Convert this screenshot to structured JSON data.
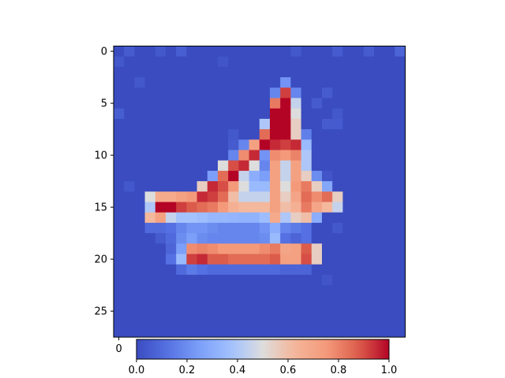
{
  "chart_data": {
    "type": "heatmap",
    "colormap": "coolwarm",
    "rows": 28,
    "cols": 28,
    "clim": [
      0,
      1
    ],
    "y_ticks": [
      0,
      5,
      10,
      15,
      20,
      25
    ],
    "y_tick_labels": [
      "0",
      "5",
      "10",
      "15",
      "20",
      "25"
    ],
    "x_ticks": [
      0
    ],
    "x_tick_labels": [
      "0"
    ],
    "colorbar": {
      "orientation": "horizontal",
      "ticks": [
        0.0,
        0.2,
        0.4,
        0.6,
        0.8,
        1.0
      ],
      "tick_labels": [
        "0.0",
        "0.2",
        "0.4",
        "0.6",
        "0.8",
        "1.0"
      ]
    },
    "background": 0.0,
    "background_noise": [
      {
        "r": 0,
        "c": 1,
        "v": 0.05
      },
      {
        "r": 0,
        "c": 4,
        "v": 0.04
      },
      {
        "r": 0,
        "c": 6,
        "v": 0.06
      },
      {
        "r": 0,
        "c": 17,
        "v": 0.04
      },
      {
        "r": 0,
        "c": 21,
        "v": 0.05
      },
      {
        "r": 0,
        "c": 24,
        "v": 0.05
      },
      {
        "r": 0,
        "c": 27,
        "v": 0.08
      },
      {
        "r": 1,
        "c": 0,
        "v": 0.04
      },
      {
        "r": 1,
        "c": 10,
        "v": 0.03
      },
      {
        "r": 3,
        "c": 2,
        "v": 0.04
      },
      {
        "r": 4,
        "c": 20,
        "v": 0.05
      },
      {
        "r": 5,
        "c": 19,
        "v": 0.05
      },
      {
        "r": 6,
        "c": 0,
        "v": 0.06
      },
      {
        "r": 6,
        "c": 21,
        "v": 0.04
      },
      {
        "r": 7,
        "c": 20,
        "v": 0.05
      },
      {
        "r": 7,
        "c": 21,
        "v": 0.05
      },
      {
        "r": 8,
        "c": 11,
        "v": 0.04
      },
      {
        "r": 9,
        "c": 11,
        "v": 0.05
      },
      {
        "r": 10,
        "c": 11,
        "v": 0.04
      },
      {
        "r": 11,
        "c": 13,
        "v": 0.05
      },
      {
        "r": 12,
        "c": 20,
        "v": 0.03
      },
      {
        "r": 13,
        "c": 1,
        "v": 0.04
      },
      {
        "r": 17,
        "c": 21,
        "v": 0.04
      },
      {
        "r": 22,
        "c": 20,
        "v": 0.03
      }
    ],
    "cells": [
      {
        "r": 3,
        "c": 16,
        "v": 0.22
      },
      {
        "r": 4,
        "c": 15,
        "v": 0.18
      },
      {
        "r": 4,
        "c": 16,
        "v": 0.92
      },
      {
        "r": 4,
        "c": 17,
        "v": 0.18
      },
      {
        "r": 5,
        "c": 15,
        "v": 0.82
      },
      {
        "r": 5,
        "c": 16,
        "v": 1.0
      },
      {
        "r": 5,
        "c": 17,
        "v": 0.45
      },
      {
        "r": 6,
        "c": 15,
        "v": 1.0
      },
      {
        "r": 6,
        "c": 16,
        "v": 1.0
      },
      {
        "r": 6,
        "c": 17,
        "v": 0.5
      },
      {
        "r": 7,
        "c": 14,
        "v": 0.4
      },
      {
        "r": 7,
        "c": 15,
        "v": 1.0
      },
      {
        "r": 7,
        "c": 16,
        "v": 1.0
      },
      {
        "r": 7,
        "c": 17,
        "v": 0.55
      },
      {
        "r": 8,
        "c": 14,
        "v": 0.85
      },
      {
        "r": 8,
        "c": 15,
        "v": 1.0
      },
      {
        "r": 8,
        "c": 16,
        "v": 1.0
      },
      {
        "r": 8,
        "c": 17,
        "v": 0.55
      },
      {
        "r": 8,
        "c": 18,
        "v": 0.16
      },
      {
        "r": 9,
        "c": 12,
        "v": 0.18
      },
      {
        "r": 9,
        "c": 13,
        "v": 0.72
      },
      {
        "r": 9,
        "c": 14,
        "v": 1.0
      },
      {
        "r": 9,
        "c": 15,
        "v": 0.95
      },
      {
        "r": 9,
        "c": 16,
        "v": 0.92
      },
      {
        "r": 9,
        "c": 17,
        "v": 0.95
      },
      {
        "r": 9,
        "c": 18,
        "v": 0.35
      },
      {
        "r": 10,
        "c": 11,
        "v": 0.18
      },
      {
        "r": 10,
        "c": 12,
        "v": 0.78
      },
      {
        "r": 10,
        "c": 13,
        "v": 0.95
      },
      {
        "r": 10,
        "c": 14,
        "v": 0.22
      },
      {
        "r": 10,
        "c": 15,
        "v": 0.78
      },
      {
        "r": 10,
        "c": 16,
        "v": 0.75
      },
      {
        "r": 10,
        "c": 17,
        "v": 0.8
      },
      {
        "r": 10,
        "c": 18,
        "v": 0.4
      },
      {
        "r": 11,
        "c": 10,
        "v": 0.5
      },
      {
        "r": 11,
        "c": 11,
        "v": 0.9
      },
      {
        "r": 11,
        "c": 12,
        "v": 0.95
      },
      {
        "r": 11,
        "c": 13,
        "v": 0.5
      },
      {
        "r": 11,
        "c": 14,
        "v": 0.18
      },
      {
        "r": 11,
        "c": 15,
        "v": 0.72
      },
      {
        "r": 11,
        "c": 16,
        "v": 0.45
      },
      {
        "r": 11,
        "c": 17,
        "v": 0.72
      },
      {
        "r": 11,
        "c": 18,
        "v": 0.4
      },
      {
        "r": 12,
        "c": 9,
        "v": 0.25
      },
      {
        "r": 12,
        "c": 10,
        "v": 0.85
      },
      {
        "r": 12,
        "c": 11,
        "v": 1.0
      },
      {
        "r": 12,
        "c": 12,
        "v": 0.45
      },
      {
        "r": 12,
        "c": 13,
        "v": 0.3
      },
      {
        "r": 12,
        "c": 14,
        "v": 0.25
      },
      {
        "r": 12,
        "c": 15,
        "v": 0.72
      },
      {
        "r": 12,
        "c": 16,
        "v": 0.45
      },
      {
        "r": 12,
        "c": 17,
        "v": 0.72
      },
      {
        "r": 12,
        "c": 18,
        "v": 0.55
      },
      {
        "r": 12,
        "c": 19,
        "v": 0.2
      },
      {
        "r": 13,
        "c": 8,
        "v": 0.55
      },
      {
        "r": 13,
        "c": 9,
        "v": 0.95
      },
      {
        "r": 13,
        "c": 10,
        "v": 0.9
      },
      {
        "r": 13,
        "c": 11,
        "v": 0.75
      },
      {
        "r": 13,
        "c": 12,
        "v": 0.5
      },
      {
        "r": 13,
        "c": 13,
        "v": 0.35
      },
      {
        "r": 13,
        "c": 14,
        "v": 0.35
      },
      {
        "r": 13,
        "c": 15,
        "v": 0.72
      },
      {
        "r": 13,
        "c": 16,
        "v": 0.5
      },
      {
        "r": 13,
        "c": 17,
        "v": 0.75
      },
      {
        "r": 13,
        "c": 18,
        "v": 0.82
      },
      {
        "r": 13,
        "c": 19,
        "v": 0.55
      },
      {
        "r": 13,
        "c": 20,
        "v": 0.28
      },
      {
        "r": 14,
        "c": 3,
        "v": 0.5
      },
      {
        "r": 14,
        "c": 4,
        "v": 0.68
      },
      {
        "r": 14,
        "c": 5,
        "v": 0.68
      },
      {
        "r": 14,
        "c": 6,
        "v": 0.72
      },
      {
        "r": 14,
        "c": 7,
        "v": 0.75
      },
      {
        "r": 14,
        "c": 8,
        "v": 0.95
      },
      {
        "r": 14,
        "c": 9,
        "v": 0.92
      },
      {
        "r": 14,
        "c": 10,
        "v": 0.85
      },
      {
        "r": 14,
        "c": 11,
        "v": 0.6
      },
      {
        "r": 14,
        "c": 12,
        "v": 0.45
      },
      {
        "r": 14,
        "c": 13,
        "v": 0.45
      },
      {
        "r": 14,
        "c": 14,
        "v": 0.45
      },
      {
        "r": 14,
        "c": 15,
        "v": 0.72
      },
      {
        "r": 14,
        "c": 16,
        "v": 0.55
      },
      {
        "r": 14,
        "c": 17,
        "v": 0.7
      },
      {
        "r": 14,
        "c": 18,
        "v": 0.85
      },
      {
        "r": 14,
        "c": 19,
        "v": 0.78
      },
      {
        "r": 14,
        "c": 20,
        "v": 0.85
      },
      {
        "r": 14,
        "c": 21,
        "v": 0.55
      },
      {
        "r": 15,
        "c": 3,
        "v": 0.4
      },
      {
        "r": 15,
        "c": 4,
        "v": 1.0
      },
      {
        "r": 15,
        "c": 5,
        "v": 1.0
      },
      {
        "r": 15,
        "c": 6,
        "v": 0.92
      },
      {
        "r": 15,
        "c": 7,
        "v": 0.88
      },
      {
        "r": 15,
        "c": 8,
        "v": 0.85
      },
      {
        "r": 15,
        "c": 9,
        "v": 0.82
      },
      {
        "r": 15,
        "c": 10,
        "v": 0.75
      },
      {
        "r": 15,
        "c": 11,
        "v": 0.65
      },
      {
        "r": 15,
        "c": 12,
        "v": 0.62
      },
      {
        "r": 15,
        "c": 13,
        "v": 0.62
      },
      {
        "r": 15,
        "c": 14,
        "v": 0.62
      },
      {
        "r": 15,
        "c": 15,
        "v": 0.72
      },
      {
        "r": 15,
        "c": 16,
        "v": 0.6
      },
      {
        "r": 15,
        "c": 17,
        "v": 0.65
      },
      {
        "r": 15,
        "c": 18,
        "v": 0.82
      },
      {
        "r": 15,
        "c": 19,
        "v": 0.7
      },
      {
        "r": 15,
        "c": 20,
        "v": 0.62
      },
      {
        "r": 15,
        "c": 21,
        "v": 0.45
      },
      {
        "r": 16,
        "c": 3,
        "v": 0.62
      },
      {
        "r": 16,
        "c": 4,
        "v": 0.72
      },
      {
        "r": 16,
        "c": 5,
        "v": 0.45
      },
      {
        "r": 16,
        "c": 6,
        "v": 0.38
      },
      {
        "r": 16,
        "c": 7,
        "v": 0.38
      },
      {
        "r": 16,
        "c": 8,
        "v": 0.36
      },
      {
        "r": 16,
        "c": 9,
        "v": 0.34
      },
      {
        "r": 16,
        "c": 10,
        "v": 0.34
      },
      {
        "r": 16,
        "c": 11,
        "v": 0.33
      },
      {
        "r": 16,
        "c": 12,
        "v": 0.32
      },
      {
        "r": 16,
        "c": 13,
        "v": 0.32
      },
      {
        "r": 16,
        "c": 14,
        "v": 0.36
      },
      {
        "r": 16,
        "c": 15,
        "v": 0.68
      },
      {
        "r": 16,
        "c": 16,
        "v": 0.4
      },
      {
        "r": 16,
        "c": 17,
        "v": 0.55
      },
      {
        "r": 16,
        "c": 18,
        "v": 0.6
      },
      {
        "r": 16,
        "c": 19,
        "v": 0.3
      },
      {
        "r": 17,
        "c": 3,
        "v": 0.1
      },
      {
        "r": 17,
        "c": 4,
        "v": 0.1
      },
      {
        "r": 17,
        "c": 5,
        "v": 0.12
      },
      {
        "r": 17,
        "c": 6,
        "v": 0.18
      },
      {
        "r": 17,
        "c": 7,
        "v": 0.22
      },
      {
        "r": 17,
        "c": 8,
        "v": 0.22
      },
      {
        "r": 17,
        "c": 9,
        "v": 0.2
      },
      {
        "r": 17,
        "c": 10,
        "v": 0.18
      },
      {
        "r": 17,
        "c": 11,
        "v": 0.18
      },
      {
        "r": 17,
        "c": 12,
        "v": 0.18
      },
      {
        "r": 17,
        "c": 13,
        "v": 0.18
      },
      {
        "r": 17,
        "c": 14,
        "v": 0.22
      },
      {
        "r": 17,
        "c": 15,
        "v": 0.3
      },
      {
        "r": 17,
        "c": 16,
        "v": 0.18
      },
      {
        "r": 17,
        "c": 17,
        "v": 0.15
      },
      {
        "r": 17,
        "c": 18,
        "v": 0.12
      },
      {
        "r": 18,
        "c": 4,
        "v": 0.05
      },
      {
        "r": 18,
        "c": 5,
        "v": 0.1
      },
      {
        "r": 18,
        "c": 6,
        "v": 0.2
      },
      {
        "r": 18,
        "c": 7,
        "v": 0.25
      },
      {
        "r": 18,
        "c": 8,
        "v": 0.2
      },
      {
        "r": 18,
        "c": 9,
        "v": 0.18
      },
      {
        "r": 18,
        "c": 10,
        "v": 0.18
      },
      {
        "r": 18,
        "c": 11,
        "v": 0.18
      },
      {
        "r": 18,
        "c": 12,
        "v": 0.18
      },
      {
        "r": 18,
        "c": 13,
        "v": 0.18
      },
      {
        "r": 18,
        "c": 14,
        "v": 0.2
      },
      {
        "r": 18,
        "c": 15,
        "v": 0.35
      },
      {
        "r": 18,
        "c": 16,
        "v": 0.12
      },
      {
        "r": 18,
        "c": 17,
        "v": 0.08
      },
      {
        "r": 18,
        "c": 18,
        "v": 0.12
      },
      {
        "r": 19,
        "c": 5,
        "v": 0.08
      },
      {
        "r": 19,
        "c": 6,
        "v": 0.25
      },
      {
        "r": 19,
        "c": 7,
        "v": 0.78
      },
      {
        "r": 19,
        "c": 8,
        "v": 0.8
      },
      {
        "r": 19,
        "c": 9,
        "v": 0.78
      },
      {
        "r": 19,
        "c": 10,
        "v": 0.75
      },
      {
        "r": 19,
        "c": 11,
        "v": 0.75
      },
      {
        "r": 19,
        "c": 12,
        "v": 0.75
      },
      {
        "r": 19,
        "c": 13,
        "v": 0.75
      },
      {
        "r": 19,
        "c": 14,
        "v": 0.78
      },
      {
        "r": 19,
        "c": 15,
        "v": 0.82
      },
      {
        "r": 19,
        "c": 16,
        "v": 0.7
      },
      {
        "r": 19,
        "c": 17,
        "v": 0.72
      },
      {
        "r": 19,
        "c": 18,
        "v": 0.88
      },
      {
        "r": 19,
        "c": 19,
        "v": 0.55
      },
      {
        "r": 20,
        "c": 5,
        "v": 0.12
      },
      {
        "r": 20,
        "c": 6,
        "v": 0.35
      },
      {
        "r": 20,
        "c": 7,
        "v": 0.92
      },
      {
        "r": 20,
        "c": 8,
        "v": 0.95
      },
      {
        "r": 20,
        "c": 9,
        "v": 0.88
      },
      {
        "r": 20,
        "c": 10,
        "v": 0.88
      },
      {
        "r": 20,
        "c": 11,
        "v": 0.85
      },
      {
        "r": 20,
        "c": 12,
        "v": 0.85
      },
      {
        "r": 20,
        "c": 13,
        "v": 0.85
      },
      {
        "r": 20,
        "c": 14,
        "v": 0.85
      },
      {
        "r": 20,
        "c": 15,
        "v": 0.88
      },
      {
        "r": 20,
        "c": 16,
        "v": 0.72
      },
      {
        "r": 20,
        "c": 17,
        "v": 0.72
      },
      {
        "r": 20,
        "c": 18,
        "v": 0.9
      },
      {
        "r": 20,
        "c": 19,
        "v": 0.55
      },
      {
        "r": 21,
        "c": 6,
        "v": 0.1
      },
      {
        "r": 21,
        "c": 7,
        "v": 0.15
      },
      {
        "r": 21,
        "c": 8,
        "v": 0.12
      },
      {
        "r": 21,
        "c": 9,
        "v": 0.1
      },
      {
        "r": 21,
        "c": 10,
        "v": 0.1
      },
      {
        "r": 21,
        "c": 11,
        "v": 0.1
      },
      {
        "r": 21,
        "c": 12,
        "v": 0.1
      },
      {
        "r": 21,
        "c": 13,
        "v": 0.1
      },
      {
        "r": 21,
        "c": 14,
        "v": 0.1
      },
      {
        "r": 21,
        "c": 15,
        "v": 0.1
      },
      {
        "r": 21,
        "c": 16,
        "v": 0.08
      },
      {
        "r": 21,
        "c": 17,
        "v": 0.08
      },
      {
        "r": 21,
        "c": 18,
        "v": 0.08
      }
    ]
  }
}
